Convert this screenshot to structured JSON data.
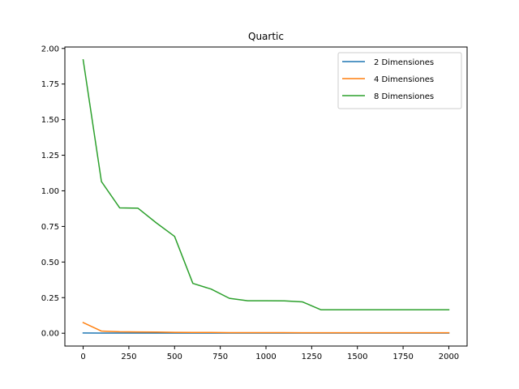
{
  "chart_data": {
    "type": "line",
    "title": "Quartic",
    "xlabel": "",
    "ylabel": "",
    "xlim": [
      -100,
      2100
    ],
    "ylim": [
      -0.09,
      2.01
    ],
    "xticks": [
      0,
      250,
      500,
      750,
      1000,
      1250,
      1500,
      1750,
      2000
    ],
    "xtick_labels": [
      "0",
      "250",
      "500",
      "750",
      "1000",
      "1250",
      "1500",
      "1750",
      "2000"
    ],
    "yticks": [
      0.0,
      0.25,
      0.5,
      0.75,
      1.0,
      1.25,
      1.5,
      1.75,
      2.0
    ],
    "ytick_labels": [
      "0.00",
      "0.25",
      "0.50",
      "0.75",
      "1.00",
      "1.25",
      "1.50",
      "1.75",
      "2.00"
    ],
    "grid": false,
    "legend_position": "top-right",
    "x": [
      0,
      100,
      200,
      300,
      400,
      500,
      600,
      700,
      800,
      900,
      1000,
      1100,
      1200,
      1300,
      1400,
      1500,
      1600,
      1700,
      1800,
      1900,
      2000
    ],
    "series": [
      {
        "name": "2 Dimensiones",
        "color": "#1f77b4",
        "values": [
          0.002,
          0.001,
          0.001,
          0.001,
          0.001,
          0.001,
          0.001,
          0.001,
          0.001,
          0.001,
          0.001,
          0.001,
          0.001,
          0.001,
          0.001,
          0.001,
          0.001,
          0.001,
          0.001,
          0.001,
          0.001
        ]
      },
      {
        "name": "4 Dimensiones",
        "color": "#ff7f0e",
        "values": [
          0.075,
          0.015,
          0.01,
          0.009,
          0.008,
          0.006,
          0.005,
          0.005,
          0.004,
          0.004,
          0.004,
          0.004,
          0.003,
          0.003,
          0.003,
          0.003,
          0.003,
          0.003,
          0.003,
          0.003,
          0.003
        ]
      },
      {
        "name": "8 Dimensiones",
        "color": "#2ca02c",
        "values": [
          1.92,
          1.065,
          0.88,
          0.878,
          0.775,
          0.68,
          0.35,
          0.31,
          0.245,
          0.228,
          0.228,
          0.227,
          0.22,
          0.165,
          0.165,
          0.165,
          0.165,
          0.165,
          0.165,
          0.165,
          0.165
        ]
      }
    ]
  }
}
